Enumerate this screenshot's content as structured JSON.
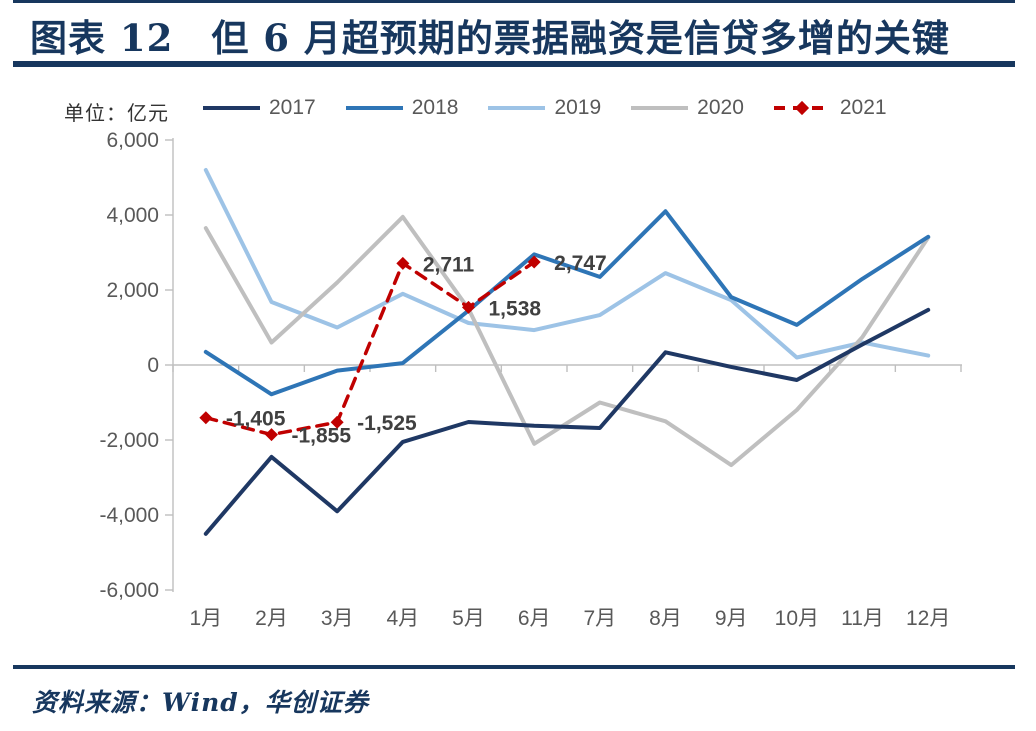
{
  "header": {
    "title": "图表 12　但 6 月超预期的票据融资是信贷多增的关键"
  },
  "chart_data": {
    "type": "line",
    "title": "但 6 月超预期的票据融资是信贷多增的关键",
    "unit_label": "单位：亿元",
    "ylabel": "亿元",
    "xlabel": "",
    "ylim": [
      -6000,
      6000
    ],
    "y_tick_values": [
      6000,
      4000,
      2000,
      0,
      -2000,
      -4000,
      -6000
    ],
    "y_ticks": [
      "6,000",
      "4,000",
      "2,000",
      "0",
      "-2,000",
      "-4,000",
      "-6,000"
    ],
    "categories": [
      "1月",
      "2月",
      "3月",
      "4月",
      "5月",
      "6月",
      "7月",
      "8月",
      "9月",
      "10月",
      "11月",
      "12月"
    ],
    "legend_position": "top",
    "grid": "zero-line-only",
    "axis_color": "#BFBFBF",
    "tick_label_color": "#595959",
    "data_label_color": "#404040",
    "series": [
      {
        "name": "2017",
        "color": "#1F3864",
        "style": "solid",
        "values": [
          -4500,
          -2450,
          -3900,
          -2050,
          -1520,
          -1620,
          -1680,
          340,
          -50,
          -400,
          550,
          1470
        ]
      },
      {
        "name": "2018",
        "color": "#2E75B6",
        "style": "solid",
        "values": [
          350,
          -780,
          -150,
          50,
          1450,
          2950,
          2350,
          4100,
          1810,
          1070,
          2300,
          3420
        ]
      },
      {
        "name": "2019",
        "color": "#9DC3E6",
        "style": "solid",
        "values": [
          5200,
          1680,
          1000,
          1900,
          1120,
          930,
          1330,
          2450,
          1730,
          200,
          600,
          250
        ]
      },
      {
        "name": "2020",
        "color": "#BFBFBF",
        "style": "solid",
        "values": [
          3650,
          600,
          2200,
          3950,
          1500,
          -2100,
          -1000,
          -1500,
          -2670,
          -1200,
          750,
          3400
        ]
      },
      {
        "name": "2021",
        "color": "#C00000",
        "style": "dashed",
        "marker": "diamond",
        "values": [
          -1405,
          -1855,
          -1525,
          2711,
          1538,
          2747,
          null,
          null,
          null,
          null,
          null,
          null
        ],
        "point_labels": [
          "-1,405",
          "-1,855",
          "-1,525",
          "2,711",
          "1,538",
          "2,747"
        ]
      }
    ]
  },
  "footer": {
    "source": "资料来源：Wind，华创证券"
  }
}
